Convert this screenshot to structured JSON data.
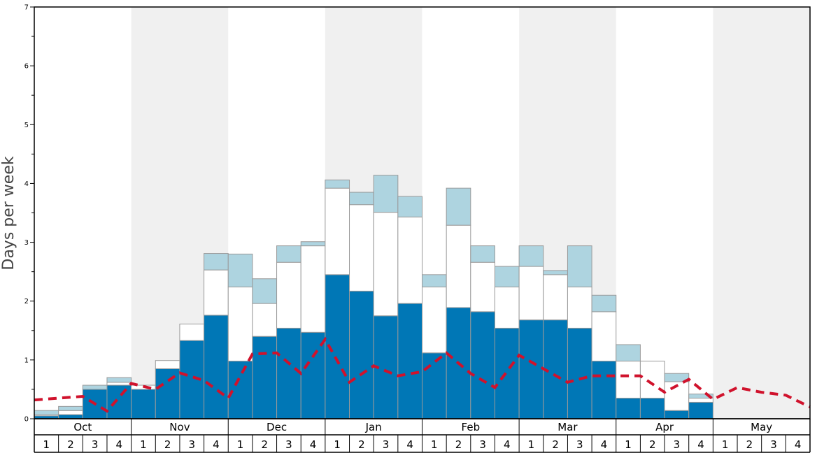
{
  "chart_data": {
    "type": "bar",
    "stacked": true,
    "ylabel": "Days per week",
    "ylim": [
      0,
      7
    ],
    "yticks": [
      "0",
      "1",
      "2",
      "3",
      "4",
      "5",
      "6",
      "7"
    ],
    "months": [
      "Oct",
      "Nov",
      "Dec",
      "Jan",
      "Feb",
      "Mar",
      "Apr",
      "May"
    ],
    "weeks": [
      "1",
      "2",
      "3",
      "4"
    ],
    "colors": {
      "dark": "#0077b6",
      "white": "#ffffff",
      "light": "#aed4e0",
      "line": "#d0122c",
      "band": "#f0f0f0",
      "border": "#999999"
    },
    "series": [
      {
        "name": "dark",
        "values": [
          0.05,
          0.07,
          0.5,
          0.57,
          0.5,
          0.85,
          1.33,
          1.76,
          0.98,
          1.4,
          1.54,
          1.47,
          2.45,
          2.17,
          1.75,
          1.96,
          1.12,
          1.89,
          1.82,
          1.54,
          1.68,
          1.68,
          1.54,
          0.98,
          0.35,
          0.35,
          0.14,
          0.28,
          0,
          0,
          0,
          0
        ]
      },
      {
        "name": "white",
        "values": [
          0.02,
          0.07,
          0.0,
          0.05,
          0.07,
          0.14,
          0.28,
          0.77,
          1.26,
          0.56,
          1.12,
          1.47,
          1.47,
          1.47,
          1.76,
          1.47,
          1.12,
          1.4,
          0.84,
          0.7,
          0.91,
          0.77,
          0.7,
          0.84,
          0.63,
          0.63,
          0.49,
          0.07,
          0,
          0,
          0,
          0
        ]
      },
      {
        "name": "light",
        "values": [
          0.07,
          0.07,
          0.07,
          0.08,
          0.0,
          0.0,
          0.0,
          0.28,
          0.56,
          0.42,
          0.28,
          0.07,
          0.14,
          0.21,
          0.63,
          0.35,
          0.21,
          0.63,
          0.28,
          0.35,
          0.35,
          0.07,
          0.7,
          0.28,
          0.28,
          0.0,
          0.14,
          0.07,
          0,
          0,
          0,
          0
        ]
      }
    ],
    "line": {
      "name": "average",
      "style": "dashed",
      "values": [
        0.32,
        0.35,
        0.38,
        0.13,
        0.6,
        0.5,
        0.78,
        0.65,
        0.35,
        1.1,
        1.12,
        0.77,
        1.35,
        0.62,
        0.9,
        0.73,
        0.8,
        1.12,
        0.77,
        0.53,
        1.08,
        0.85,
        0.62,
        0.73,
        0.73,
        0.73,
        0.45,
        0.67,
        0.33,
        0.53,
        0.45,
        0.4,
        0.2
      ]
    }
  }
}
